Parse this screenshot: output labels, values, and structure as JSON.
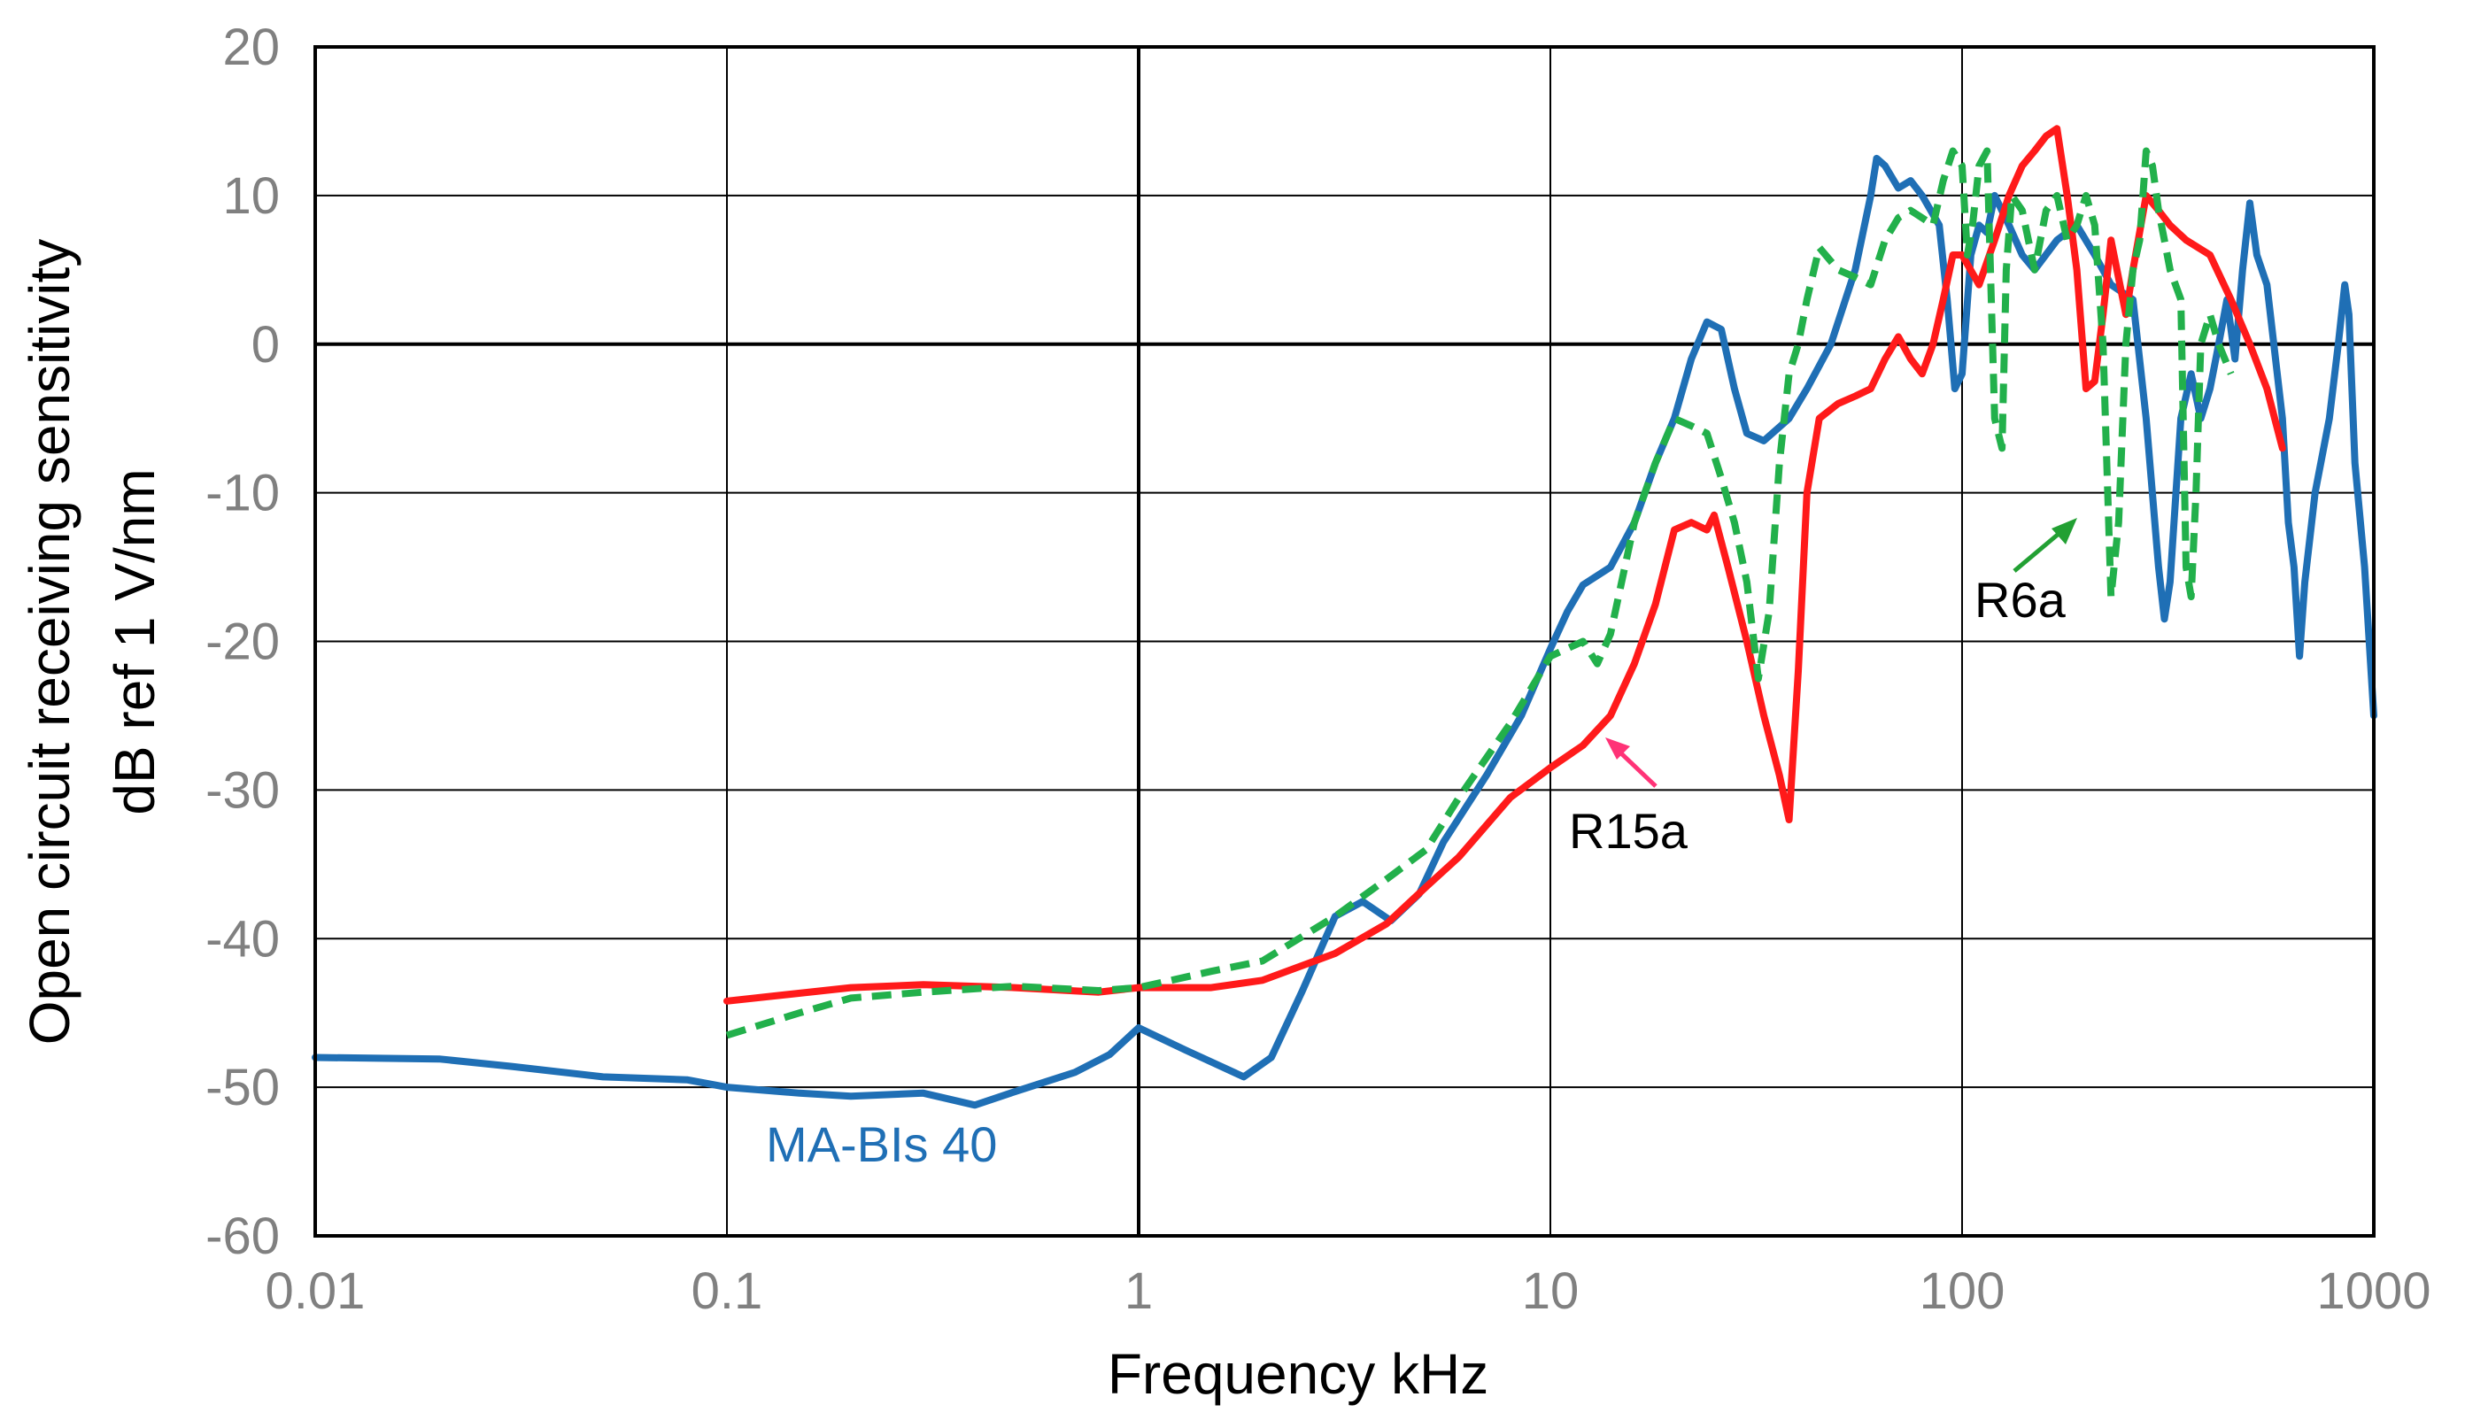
{
  "chart_data": {
    "type": "line",
    "title": "",
    "xlabel": "Frequency  kHz",
    "ylabel_line1": "Open circuit receiving sensitivity",
    "ylabel_line2": "dB ref 1 V/nm",
    "xscale": "log",
    "xlim": [
      0.01,
      1000
    ],
    "ylim": [
      -60,
      20
    ],
    "grid": true,
    "xticks": [
      0.01,
      0.1,
      1,
      10,
      100,
      1000
    ],
    "xtick_labels": [
      "0.01",
      "0.1",
      "1",
      "10",
      "100",
      "1000"
    ],
    "yticks": [
      20,
      10,
      0,
      -10,
      -20,
      -30,
      -40,
      -50,
      -60
    ],
    "ytick_labels": [
      "20",
      "10",
      "0",
      "-10",
      "-20",
      "-30",
      "-40",
      "-50",
      "-60"
    ],
    "series": [
      {
        "name": "MA-BIs 40",
        "color": "#1f6fb5",
        "dash": "solid",
        "points": [
          [
            0.01,
            -48
          ],
          [
            0.02,
            -48.1
          ],
          [
            0.03,
            -48.6
          ],
          [
            0.05,
            -49.3
          ],
          [
            0.08,
            -49.5
          ],
          [
            0.1,
            -50
          ],
          [
            0.15,
            -50.4
          ],
          [
            0.2,
            -50.6
          ],
          [
            0.3,
            -50.4
          ],
          [
            0.4,
            -51.2
          ],
          [
            0.5,
            -50.3
          ],
          [
            0.7,
            -49
          ],
          [
            0.85,
            -47.8
          ],
          [
            1.0,
            -46
          ],
          [
            1.3,
            -47.5
          ],
          [
            1.8,
            -49.3
          ],
          [
            2.1,
            -48
          ],
          [
            2.5,
            -43.5
          ],
          [
            3.0,
            -38.5
          ],
          [
            3.5,
            -37.5
          ],
          [
            4.1,
            -38.8
          ],
          [
            4.8,
            -37
          ],
          [
            5.5,
            -33.5
          ],
          [
            7.0,
            -29
          ],
          [
            8.5,
            -25
          ],
          [
            10,
            -20.5
          ],
          [
            11,
            -18
          ],
          [
            12,
            -16.2
          ],
          [
            14,
            -15
          ],
          [
            16,
            -12
          ],
          [
            18,
            -8
          ],
          [
            20,
            -5
          ],
          [
            22,
            -1
          ],
          [
            24,
            1.5
          ],
          [
            26,
            1
          ],
          [
            28,
            -3
          ],
          [
            30,
            -6
          ],
          [
            33,
            -6.5
          ],
          [
            38,
            -5
          ],
          [
            42,
            -3
          ],
          [
            48,
            0
          ],
          [
            55,
            5
          ],
          [
            60,
            10
          ],
          [
            62,
            12.5
          ],
          [
            65,
            12
          ],
          [
            70,
            10.5
          ],
          [
            75,
            11
          ],
          [
            80,
            10
          ],
          [
            88,
            8
          ],
          [
            92,
            3
          ],
          [
            96,
            -3
          ],
          [
            100,
            -2
          ],
          [
            105,
            6
          ],
          [
            110,
            8
          ],
          [
            115,
            7.5
          ],
          [
            120,
            10
          ],
          [
            130,
            8
          ],
          [
            140,
            6
          ],
          [
            150,
            5
          ],
          [
            170,
            7
          ],
          [
            190,
            8
          ],
          [
            210,
            6
          ],
          [
            230,
            4
          ],
          [
            260,
            3
          ],
          [
            280,
            -5
          ],
          [
            300,
            -15
          ],
          [
            310,
            -18.5
          ],
          [
            320,
            -16
          ],
          [
            340,
            -5
          ],
          [
            360,
            -2
          ],
          [
            380,
            -5
          ],
          [
            400,
            -3
          ],
          [
            420,
            0
          ],
          [
            440,
            3
          ],
          [
            460,
            -1
          ],
          [
            480,
            5
          ],
          [
            500,
            9.5
          ],
          [
            520,
            6
          ],
          [
            550,
            4
          ],
          [
            600,
            -5
          ],
          [
            620,
            -12
          ],
          [
            640,
            -15
          ],
          [
            660,
            -21
          ],
          [
            680,
            -16
          ],
          [
            720,
            -10
          ],
          [
            780,
            -5
          ],
          [
            820,
            0
          ],
          [
            850,
            4
          ],
          [
            870,
            2
          ],
          [
            900,
            -8
          ],
          [
            950,
            -15
          ],
          [
            1000,
            -25
          ]
        ]
      },
      {
        "name": "R15a",
        "color": "#ff1a1a",
        "dash": "solid",
        "points": [
          [
            0.1,
            -44.2
          ],
          [
            0.2,
            -43.3
          ],
          [
            0.3,
            -43.1
          ],
          [
            0.5,
            -43.3
          ],
          [
            0.8,
            -43.6
          ],
          [
            1.0,
            -43.3
          ],
          [
            1.5,
            -43.3
          ],
          [
            2.0,
            -42.8
          ],
          [
            3.0,
            -41
          ],
          [
            4.0,
            -39
          ],
          [
            5.0,
            -36.5
          ],
          [
            6.0,
            -34.5
          ],
          [
            8.0,
            -30.5
          ],
          [
            10,
            -28.5
          ],
          [
            12,
            -27
          ],
          [
            14,
            -25
          ],
          [
            16,
            -21.5
          ],
          [
            18,
            -17.5
          ],
          [
            20,
            -12.5
          ],
          [
            22,
            -12
          ],
          [
            24,
            -12.5
          ],
          [
            25,
            -11.5
          ],
          [
            27,
            -15
          ],
          [
            30,
            -20
          ],
          [
            33,
            -25
          ],
          [
            36,
            -29
          ],
          [
            38,
            -32
          ],
          [
            40,
            -22
          ],
          [
            42,
            -10
          ],
          [
            45,
            -5
          ],
          [
            50,
            -4
          ],
          [
            55,
            -3.5
          ],
          [
            60,
            -3
          ],
          [
            65,
            -1
          ],
          [
            70,
            0.5
          ],
          [
            75,
            -1
          ],
          [
            80,
            -2
          ],
          [
            85,
            0
          ],
          [
            90,
            3
          ],
          [
            95,
            6
          ],
          [
            100,
            6
          ],
          [
            110,
            4
          ],
          [
            120,
            7
          ],
          [
            130,
            10
          ],
          [
            140,
            12
          ],
          [
            150,
            13
          ],
          [
            160,
            14
          ],
          [
            170,
            14.5
          ],
          [
            180,
            10
          ],
          [
            190,
            5
          ],
          [
            200,
            -3
          ],
          [
            210,
            -2.5
          ],
          [
            220,
            2
          ],
          [
            230,
            7
          ],
          [
            250,
            2
          ],
          [
            260,
            5
          ],
          [
            280,
            10
          ],
          [
            300,
            9
          ],
          [
            320,
            8
          ],
          [
            350,
            7
          ],
          [
            400,
            6
          ],
          [
            450,
            3
          ],
          [
            500,
            0
          ],
          [
            550,
            -3
          ],
          [
            600,
            -7
          ]
        ]
      },
      {
        "name": "R6a",
        "color": "#22b04b",
        "dash": "dashed",
        "points": [
          [
            0.1,
            -46.5
          ],
          [
            0.15,
            -45
          ],
          [
            0.2,
            -44
          ],
          [
            0.3,
            -43.6
          ],
          [
            0.5,
            -43.2
          ],
          [
            0.8,
            -43.5
          ],
          [
            1.0,
            -43.3
          ],
          [
            1.5,
            -42.2
          ],
          [
            2.0,
            -41.5
          ],
          [
            3.0,
            -38.5
          ],
          [
            4.0,
            -36
          ],
          [
            5.0,
            -34
          ],
          [
            6.0,
            -30.5
          ],
          [
            8.0,
            -25.5
          ],
          [
            10,
            -21
          ],
          [
            12,
            -20
          ],
          [
            13,
            -21.5
          ],
          [
            14,
            -19.5
          ],
          [
            16,
            -12
          ],
          [
            18,
            -8
          ],
          [
            20,
            -5
          ],
          [
            22,
            -5.5
          ],
          [
            24,
            -6
          ],
          [
            26,
            -9
          ],
          [
            28,
            -12
          ],
          [
            30,
            -16
          ],
          [
            32,
            -22.5
          ],
          [
            34,
            -18
          ],
          [
            36,
            -8
          ],
          [
            38,
            -2
          ],
          [
            40,
            0
          ],
          [
            42,
            3
          ],
          [
            45,
            6.5
          ],
          [
            50,
            5
          ],
          [
            55,
            4.5
          ],
          [
            60,
            4
          ],
          [
            65,
            7
          ],
          [
            70,
            8.5
          ],
          [
            75,
            9
          ],
          [
            80,
            8.5
          ],
          [
            85,
            8
          ],
          [
            90,
            11
          ],
          [
            95,
            13
          ],
          [
            100,
            12
          ],
          [
            103,
            6
          ],
          [
            106,
            8
          ],
          [
            110,
            12
          ],
          [
            115,
            13
          ],
          [
            120,
            -5
          ],
          [
            125,
            -7
          ],
          [
            128,
            5
          ],
          [
            132,
            10
          ],
          [
            140,
            9
          ],
          [
            150,
            5
          ],
          [
            160,
            9
          ],
          [
            170,
            10
          ],
          [
            180,
            7
          ],
          [
            190,
            8
          ],
          [
            200,
            10
          ],
          [
            210,
            8
          ],
          [
            220,
            0
          ],
          [
            230,
            -17
          ],
          [
            240,
            -12
          ],
          [
            250,
            0
          ],
          [
            260,
            5
          ],
          [
            270,
            7
          ],
          [
            280,
            13
          ],
          [
            290,
            12
          ],
          [
            300,
            9
          ],
          [
            310,
            7
          ],
          [
            320,
            5
          ],
          [
            340,
            3
          ],
          [
            350,
            -15
          ],
          [
            360,
            -17
          ],
          [
            370,
            -10
          ],
          [
            380,
            0
          ],
          [
            400,
            2
          ],
          [
            420,
            0
          ],
          [
            450,
            -2
          ]
        ]
      }
    ],
    "annotations": [
      {
        "text": "MA-BIs 40",
        "color": "#1f6fb5"
      },
      {
        "text": "R15a",
        "color": "#000000",
        "arrow_color": "#ff3377"
      },
      {
        "text": "R6a",
        "color": "#000000",
        "arrow_color": "#22a033"
      }
    ]
  }
}
